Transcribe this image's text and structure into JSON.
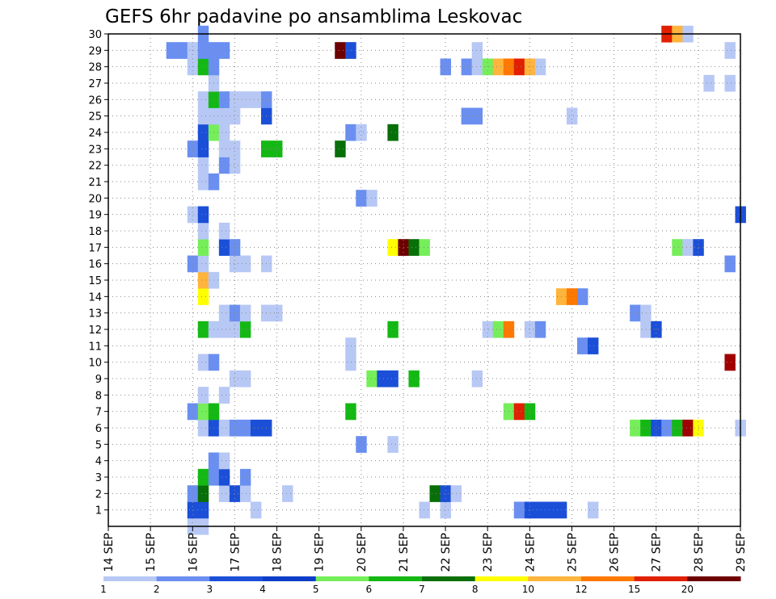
{
  "chart_data": {
    "type": "heatmap",
    "title": "GEFS 6hr padavine po ansamblima Leskovac",
    "x_start_day": 14,
    "x_tick_labels": [
      "14 SEP",
      "15 SEP",
      "16 SEP",
      "17 SEP",
      "18 SEP",
      "19 SEP",
      "20 SEP",
      "21 SEP",
      "22 SEP",
      "23 SEP",
      "24 SEP",
      "25 SEP",
      "26 SEP",
      "27 SEP",
      "28 SEP",
      "29 SEP"
    ],
    "y_tick_labels": [
      "1",
      "2",
      "3",
      "4",
      "5",
      "6",
      "7",
      "8",
      "9",
      "10",
      "11",
      "12",
      "13",
      "14",
      "15",
      "16",
      "17",
      "18",
      "19",
      "20",
      "21",
      "22",
      "23",
      "24",
      "25",
      "26",
      "27",
      "28",
      "29",
      "30"
    ],
    "xlim_days": [
      14,
      29
    ],
    "ylim_members": [
      0,
      30
    ],
    "grid": true,
    "legend": {
      "position": "bottom",
      "labels": [
        "1",
        "2",
        "3",
        "4",
        "5",
        "6",
        "7",
        "8",
        "10",
        "12",
        "15",
        "20"
      ],
      "colors": [
        "#b7c8f5",
        "#6a8ff0",
        "#1b4fd8",
        "#0c3cc8",
        "#76ee5a",
        "#14b814",
        "#086f08",
        "#ffff00",
        "#ffb43c",
        "#ff7800",
        "#e02000",
        "#6e0000"
      ]
    },
    "bin_colors": [
      "#b7c8f5",
      "#6a8ff0",
      "#1b4fd8",
      "#76ee5a",
      "#14b814",
      "#086f08",
      "#ffff00",
      "#ffb43c",
      "#ff7800",
      "#e02000",
      "#a00000",
      "#6e0000"
    ],
    "cells": [
      [
        0,
        16.0,
        0
      ],
      [
        0,
        16.25,
        0
      ],
      [
        1,
        16.0,
        2
      ],
      [
        1,
        16.25,
        2
      ],
      [
        1,
        17.5,
        0
      ],
      [
        1,
        21.5,
        0
      ],
      [
        1,
        22.0,
        0
      ],
      [
        1,
        23.75,
        1
      ],
      [
        1,
        24.0,
        2
      ],
      [
        1,
        24.25,
        2
      ],
      [
        1,
        24.5,
        2
      ],
      [
        1,
        24.75,
        2
      ],
      [
        1,
        25.5,
        0
      ],
      [
        2,
        16.0,
        1
      ],
      [
        2,
        16.25,
        5
      ],
      [
        2,
        16.75,
        0
      ],
      [
        2,
        17.0,
        2
      ],
      [
        2,
        17.25,
        0
      ],
      [
        2,
        18.25,
        0
      ],
      [
        2,
        21.75,
        5
      ],
      [
        2,
        22.0,
        2
      ],
      [
        2,
        22.25,
        0
      ],
      [
        3,
        16.25,
        4
      ],
      [
        3,
        16.5,
        1
      ],
      [
        3,
        16.75,
        2
      ],
      [
        3,
        17.25,
        1
      ],
      [
        4,
        16.5,
        1
      ],
      [
        4,
        16.75,
        0
      ],
      [
        5,
        20.0,
        1
      ],
      [
        5,
        20.75,
        0
      ],
      [
        6,
        16.25,
        0
      ],
      [
        6,
        16.5,
        2
      ],
      [
        6,
        16.75,
        0
      ],
      [
        6,
        17.0,
        1
      ],
      [
        6,
        17.25,
        1
      ],
      [
        6,
        17.5,
        2
      ],
      [
        6,
        17.75,
        2
      ],
      [
        6,
        29.0,
        0
      ],
      [
        6,
        26.5,
        3
      ],
      [
        6,
        26.75,
        4
      ],
      [
        6,
        27.0,
        2
      ],
      [
        6,
        27.25,
        1
      ],
      [
        6,
        27.5,
        4
      ],
      [
        6,
        27.75,
        10
      ],
      [
        6,
        28.0,
        6
      ],
      [
        7,
        16.0,
        1
      ],
      [
        7,
        16.25,
        3
      ],
      [
        7,
        16.5,
        4
      ],
      [
        7,
        19.75,
        4
      ],
      [
        7,
        23.5,
        3
      ],
      [
        7,
        23.75,
        9
      ],
      [
        7,
        24.0,
        4
      ],
      [
        8,
        16.25,
        0
      ],
      [
        8,
        16.75,
        0
      ],
      [
        9,
        17.0,
        0
      ],
      [
        9,
        17.25,
        0
      ],
      [
        9,
        20.25,
        3
      ],
      [
        9,
        20.5,
        2
      ],
      [
        9,
        20.75,
        2
      ],
      [
        9,
        21.25,
        4
      ],
      [
        9,
        22.75,
        0
      ],
      [
        10,
        16.25,
        0
      ],
      [
        10,
        16.5,
        1
      ],
      [
        10,
        19.75,
        0
      ],
      [
        10,
        28.75,
        10
      ],
      [
        11,
        19.75,
        0
      ],
      [
        11,
        25.25,
        1
      ],
      [
        11,
        25.5,
        2
      ],
      [
        12,
        16.25,
        4
      ],
      [
        12,
        16.5,
        0
      ],
      [
        12,
        16.75,
        0
      ],
      [
        12,
        17.0,
        0
      ],
      [
        12,
        17.25,
        4
      ],
      [
        12,
        20.75,
        4
      ],
      [
        12,
        23.0,
        0
      ],
      [
        12,
        23.25,
        3
      ],
      [
        12,
        23.5,
        8
      ],
      [
        12,
        24.0,
        0
      ],
      [
        12,
        24.25,
        1
      ],
      [
        12,
        26.75,
        0
      ],
      [
        12,
        27.0,
        2
      ],
      [
        13,
        16.75,
        0
      ],
      [
        13,
        17.0,
        1
      ],
      [
        13,
        17.25,
        0
      ],
      [
        13,
        17.75,
        0
      ],
      [
        13,
        18.0,
        0
      ],
      [
        13,
        26.5,
        1
      ],
      [
        13,
        26.75,
        0
      ],
      [
        14,
        16.25,
        6
      ],
      [
        14,
        24.75,
        7
      ],
      [
        14,
        25.0,
        8
      ],
      [
        14,
        25.25,
        1
      ],
      [
        15,
        16.25,
        7
      ],
      [
        15,
        16.5,
        0
      ],
      [
        16,
        16.0,
        1
      ],
      [
        16,
        16.25,
        0
      ],
      [
        16,
        17.0,
        0
      ],
      [
        16,
        17.25,
        0
      ],
      [
        16,
        17.75,
        0
      ],
      [
        16,
        28.75,
        1
      ],
      [
        17,
        16.25,
        3
      ],
      [
        17,
        16.75,
        2
      ],
      [
        17,
        17.0,
        1
      ],
      [
        17,
        20.75,
        6
      ],
      [
        17,
        21.0,
        11
      ],
      [
        17,
        21.25,
        5
      ],
      [
        17,
        21.5,
        3
      ],
      [
        17,
        27.5,
        3
      ],
      [
        17,
        27.75,
        0
      ],
      [
        17,
        28.0,
        2
      ],
      [
        18,
        16.25,
        0
      ],
      [
        18,
        16.75,
        0
      ],
      [
        19,
        16.0,
        0
      ],
      [
        19,
        16.25,
        2
      ],
      [
        19,
        29.0,
        2
      ],
      [
        20,
        20.0,
        1
      ],
      [
        20,
        20.25,
        0
      ],
      [
        21,
        16.25,
        0
      ],
      [
        21,
        16.5,
        1
      ],
      [
        22,
        16.25,
        0
      ],
      [
        22,
        16.75,
        1
      ],
      [
        22,
        17.0,
        0
      ],
      [
        23,
        16.0,
        1
      ],
      [
        23,
        16.25,
        2
      ],
      [
        23,
        16.75,
        0
      ],
      [
        23,
        17.0,
        0
      ],
      [
        23,
        17.75,
        4
      ],
      [
        23,
        18.0,
        4
      ],
      [
        23,
        19.5,
        5
      ],
      [
        24,
        16.25,
        2
      ],
      [
        24,
        16.5,
        3
      ],
      [
        24,
        16.75,
        0
      ],
      [
        24,
        19.75,
        1
      ],
      [
        24,
        20.0,
        0
      ],
      [
        24,
        20.75,
        5
      ],
      [
        25,
        16.25,
        0
      ],
      [
        25,
        16.5,
        0
      ],
      [
        25,
        16.75,
        0
      ],
      [
        25,
        17.0,
        0
      ],
      [
        25,
        17.75,
        2
      ],
      [
        25,
        22.5,
        1
      ],
      [
        25,
        22.75,
        1
      ],
      [
        25,
        25.0,
        0
      ],
      [
        26,
        16.25,
        0
      ],
      [
        26,
        16.5,
        4
      ],
      [
        26,
        16.75,
        1
      ],
      [
        26,
        17.0,
        0
      ],
      [
        26,
        17.25,
        0
      ],
      [
        26,
        17.5,
        0
      ],
      [
        26,
        17.75,
        1
      ],
      [
        27,
        16.5,
        0
      ],
      [
        27,
        28.25,
        0
      ],
      [
        27,
        28.75,
        0
      ],
      [
        28,
        16.0,
        0
      ],
      [
        28,
        16.25,
        4
      ],
      [
        28,
        16.5,
        1
      ],
      [
        28,
        22.0,
        1
      ],
      [
        28,
        22.5,
        1
      ],
      [
        28,
        22.75,
        0
      ],
      [
        28,
        23.0,
        3
      ],
      [
        28,
        23.25,
        7
      ],
      [
        28,
        23.5,
        8
      ],
      [
        28,
        23.75,
        9
      ],
      [
        28,
        24.0,
        7
      ],
      [
        28,
        24.25,
        0
      ],
      [
        29,
        15.5,
        1
      ],
      [
        29,
        15.75,
        1
      ],
      [
        29,
        16.0,
        0
      ],
      [
        29,
        16.25,
        1
      ],
      [
        29,
        16.5,
        1
      ],
      [
        29,
        16.75,
        1
      ],
      [
        29,
        19.5,
        11
      ],
      [
        29,
        19.75,
        2
      ],
      [
        29,
        22.75,
        0
      ],
      [
        29,
        28.75,
        0
      ],
      [
        30,
        16.25,
        1
      ],
      [
        30,
        27.25,
        9
      ],
      [
        30,
        27.5,
        7
      ],
      [
        30,
        27.75,
        0
      ]
    ]
  }
}
